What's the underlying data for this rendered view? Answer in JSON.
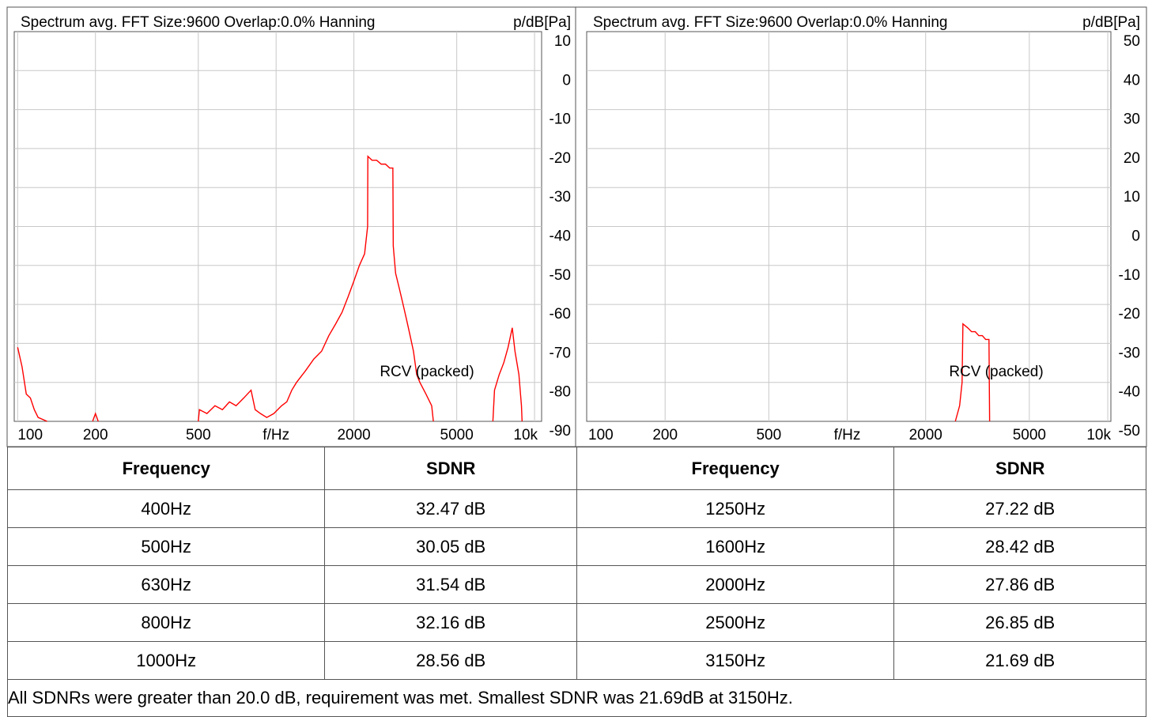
{
  "chart_data": [
    {
      "type": "line",
      "title": "Spectrum avg.  FFT Size:9600  Overlap:0.0%  Hanning",
      "y_label": "p/dB[Pa]",
      "annotations": [
        "RCV (packed)"
      ],
      "xscale": "log",
      "grid": true,
      "xlim": [
        97,
        10650
      ],
      "ylim": [
        -90,
        10
      ],
      "xticks": [
        100,
        200,
        500,
        {
          "value": 1000,
          "label": "f/Hz"
        },
        2000,
        5000,
        {
          "value": 10000,
          "label": "10k"
        }
      ],
      "yticks": [
        10,
        0,
        -10,
        -20,
        -30,
        -40,
        -50,
        -60,
        -70,
        -80,
        -90
      ],
      "x": [
        100,
        104,
        108,
        112,
        116,
        120,
        130,
        150,
        195,
        200,
        205,
        300,
        500,
        505,
        540,
        580,
        620,
        660,
        700,
        750,
        800,
        830,
        870,
        920,
        980,
        1050,
        1100,
        1150,
        1200,
        1300,
        1400,
        1500,
        1600,
        1700,
        1800,
        1900,
        2000,
        2100,
        2200,
        2260,
        2265,
        2350,
        2450,
        2550,
        2650,
        2750,
        2830,
        2840,
        2900,
        3000,
        3100,
        3200,
        3300,
        3400,
        3500,
        3600,
        3800,
        4000,
        4060,
        5000,
        6900,
        7000,
        7300,
        7600,
        7900,
        8200,
        8400,
        8700,
        8900,
        8950
      ],
      "series": [
        {
          "color": "#ff0000",
          "values": [
            -71,
            -76,
            -83,
            -84,
            -87,
            -89,
            -90,
            null,
            -90,
            -88,
            -90,
            null,
            -90,
            -87,
            -88,
            -86,
            -87,
            -85,
            -86,
            -84,
            -82,
            -87,
            -88,
            -89,
            -88,
            -86,
            -85,
            -82,
            -80,
            -77,
            -74,
            -72,
            -68,
            -65,
            -62,
            -58,
            -54,
            -50,
            -47,
            -40,
            -22,
            -23,
            -23,
            -24,
            -24,
            -25,
            -25,
            -45,
            -52,
            -56,
            -60,
            -64,
            -68,
            -72,
            -78,
            -80,
            -83,
            -86,
            -90,
            null,
            -90,
            -82,
            -78,
            -75,
            -71,
            -66,
            -72,
            -78,
            -86,
            -90
          ]
        }
      ]
    },
    {
      "type": "line",
      "title": "Spectrum avg.  FFT Size:9600  Overlap:0.0%  Hanning",
      "y_label": "p/dB[Pa]",
      "annotations": [
        "RCV (packed)"
      ],
      "xscale": "log",
      "grid": true,
      "xlim": [
        100,
        10280
      ],
      "ylim": [
        -50,
        50
      ],
      "xticks": [
        100,
        200,
        500,
        {
          "value": 1000,
          "label": "f/Hz"
        },
        2000,
        5000,
        {
          "value": 10000,
          "label": "10k"
        }
      ],
      "yticks": [
        50,
        40,
        30,
        20,
        10,
        0,
        -10,
        -20,
        -30,
        -40,
        -50
      ],
      "x": [
        2600,
        2700,
        2760,
        2780,
        2900,
        3000,
        3100,
        3200,
        3300,
        3400,
        3500,
        3520
      ],
      "series": [
        {
          "color": "#ff0000",
          "values": [
            -50,
            -46,
            -40,
            -25,
            -26,
            -27,
            -27,
            -28,
            -28,
            -29,
            -29,
            -50
          ]
        }
      ]
    }
  ],
  "table": {
    "header": [
      "Frequency",
      "SDNR",
      "Frequency",
      "SDNR"
    ],
    "rows": [
      [
        "400Hz",
        "32.47 dB",
        "1250Hz",
        "27.22 dB"
      ],
      [
        "500Hz",
        "30.05 dB",
        "1600Hz",
        "28.42 dB"
      ],
      [
        "630Hz",
        "31.54 dB",
        "2000Hz",
        "27.86 dB"
      ],
      [
        "800Hz",
        "32.16 dB",
        "2500Hz",
        "26.85 dB"
      ],
      [
        "1000Hz",
        "28.56 dB",
        "3150Hz",
        "21.69 dB"
      ]
    ],
    "footer": "All SDNRs were greater than 20.0 dB, requirement was met. Smallest SDNR was 21.69dB at 3150Hz."
  }
}
